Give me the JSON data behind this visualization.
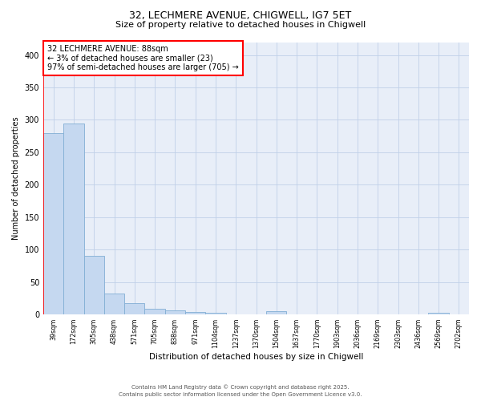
{
  "title1": "32, LECHMERE AVENUE, CHIGWELL, IG7 5ET",
  "title2": "Size of property relative to detached houses in Chigwell",
  "xlabel": "Distribution of detached houses by size in Chigwell",
  "ylabel": "Number of detached properties",
  "bin_labels": [
    "39sqm",
    "172sqm",
    "305sqm",
    "438sqm",
    "571sqm",
    "705sqm",
    "838sqm",
    "971sqm",
    "1104sqm",
    "1237sqm",
    "1370sqm",
    "1504sqm",
    "1637sqm",
    "1770sqm",
    "1903sqm",
    "2036sqm",
    "2169sqm",
    "2303sqm",
    "2436sqm",
    "2569sqm",
    "2702sqm"
  ],
  "bar_heights": [
    280,
    295,
    90,
    32,
    17,
    8,
    6,
    4,
    3,
    0,
    0,
    5,
    0,
    0,
    0,
    0,
    0,
    0,
    0,
    3,
    0
  ],
  "bar_color": "#c5d8f0",
  "bar_edge_color": "#82aed4",
  "vline_color": "red",
  "annotation_text": "32 LECHMERE AVENUE: 88sqm\n← 3% of detached houses are smaller (23)\n97% of semi-detached houses are larger (705) →",
  "annotation_box_color": "white",
  "annotation_box_edge": "red",
  "ylim": [
    0,
    420
  ],
  "yticks": [
    0,
    50,
    100,
    150,
    200,
    250,
    300,
    350,
    400
  ],
  "grid_color": "#c0d0e8",
  "bg_color": "#e8eef8",
  "title1_fontsize": 9,
  "title2_fontsize": 8,
  "footer1": "Contains HM Land Registry data © Crown copyright and database right 2025.",
  "footer2": "Contains public sector information licensed under the Open Government Licence v3.0."
}
